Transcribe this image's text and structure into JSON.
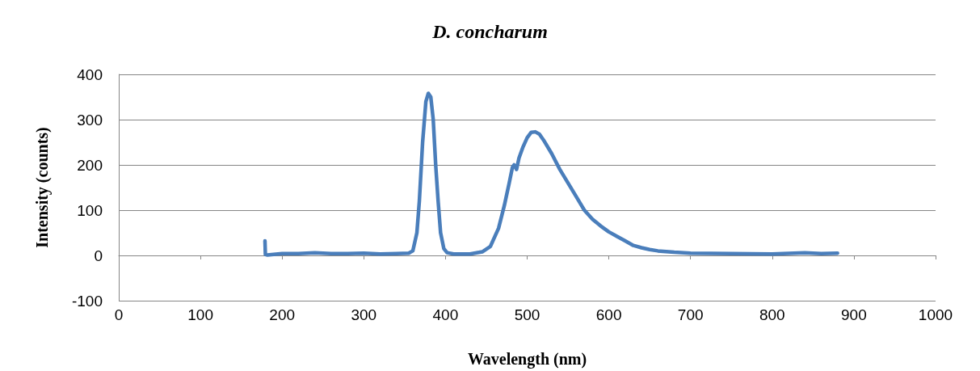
{
  "chart_data": {
    "type": "line",
    "title": "D. concharum",
    "xlabel": "Wavelength (nm)",
    "ylabel": "Intensity (counts)",
    "xlim": [
      0,
      1000
    ],
    "xticks": [
      0,
      100,
      200,
      300,
      400,
      500,
      600,
      700,
      800,
      900,
      1000
    ],
    "ylim": [
      -100,
      400
    ],
    "yticks": [
      -100,
      0,
      100,
      200,
      300,
      400
    ],
    "grid": "y",
    "marker": "none",
    "line_style": "solid",
    "series": [
      {
        "color": "#4a7ebb",
        "x": [
          179,
          179.5,
          182,
          200,
          220,
          240,
          260,
          280,
          300,
          320,
          340,
          355,
          360,
          365,
          368,
          372,
          376,
          379,
          382,
          385,
          388,
          391,
          394,
          398,
          402,
          410,
          430,
          445,
          455,
          465,
          472,
          478,
          482,
          484,
          487,
          490,
          495,
          500,
          505,
          510,
          515,
          520,
          530,
          540,
          550,
          560,
          570,
          580,
          590,
          600,
          610,
          620,
          630,
          640,
          650,
          660,
          680,
          700,
          750,
          800,
          840,
          860,
          880
        ],
        "values": [
          32,
          2,
          1,
          4,
          4,
          6,
          4,
          4,
          5,
          3,
          4,
          5,
          10,
          50,
          120,
          250,
          340,
          358,
          350,
          300,
          200,
          120,
          50,
          15,
          6,
          3,
          3,
          8,
          20,
          60,
          110,
          160,
          195,
          200,
          190,
          215,
          240,
          260,
          272,
          273,
          268,
          255,
          225,
          190,
          160,
          130,
          100,
          80,
          65,
          52,
          42,
          32,
          22,
          17,
          13,
          10,
          7,
          5,
          4,
          3,
          6,
          4,
          5
        ]
      }
    ]
  }
}
